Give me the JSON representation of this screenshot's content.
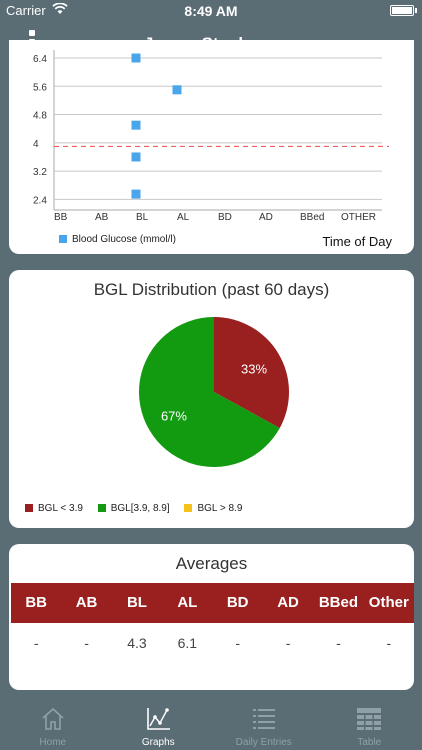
{
  "status_bar": {
    "carrier": "Carrier",
    "time": "8:49 AM"
  },
  "nav": {
    "title": "James Stephens",
    "menu_icon": "vertical-dots-icon"
  },
  "colors": {
    "blue": "#4aa6ea",
    "red": "#9a1f1f",
    "green": "#129a10",
    "yellow": "#f4c21b",
    "threshold_line": "#e84c4c"
  },
  "scatter": {
    "legend": "Blood Glucose (mmol/l)",
    "x_axis_title": "Time of Day"
  },
  "pie": {
    "title": "BGL Distribution (past 60 days)",
    "legend": [
      "BGL < 3.9",
      "BGL[3.9, 8.9]",
      "BGL > 8.9"
    ],
    "labels": [
      "33%",
      "67%"
    ]
  },
  "chart_data": [
    {
      "type": "scatter",
      "categories": [
        "BB",
        "AB",
        "BL",
        "AL",
        "BD",
        "AD",
        "BBed",
        "OTHER"
      ],
      "y_ticks": [
        "2.4",
        "3.2",
        "4",
        "4.8",
        "5.6",
        "6.4"
      ],
      "ylim": [
        2.1,
        6.4
      ],
      "threshold": 3.9,
      "series": [
        {
          "name": "Blood Glucose (mmol/l)",
          "points": [
            {
              "x": "BL",
              "y": 6.4
            },
            {
              "x": "BL",
              "y": 4.5
            },
            {
              "x": "BL",
              "y": 3.6
            },
            {
              "x": "BL",
              "y": 2.55
            },
            {
              "x": "AL",
              "y": 5.5
            }
          ]
        }
      ],
      "xlabel": "Time of Day",
      "grid": true
    },
    {
      "type": "pie",
      "slices": [
        {
          "label": "BGL < 3.9",
          "value": 33,
          "text": "33%"
        },
        {
          "label": "BGL[3.9, 8.9]",
          "value": 67,
          "text": "67%"
        },
        {
          "label": "BGL > 8.9",
          "value": 0,
          "text": ""
        }
      ]
    }
  ],
  "averages": {
    "title": "Averages",
    "headers": [
      "BB",
      "AB",
      "BL",
      "AL",
      "BD",
      "AD",
      "BBed",
      "Other"
    ],
    "values": [
      "-",
      "-",
      "4.3",
      "6.1",
      "-",
      "-",
      "-",
      "-"
    ]
  },
  "tabs": [
    {
      "label": "Home",
      "icon": "home-icon"
    },
    {
      "label": "Graphs",
      "icon": "graph-icon"
    },
    {
      "label": "Daily Entries",
      "icon": "list-icon"
    },
    {
      "label": "Table",
      "icon": "table-icon"
    }
  ]
}
